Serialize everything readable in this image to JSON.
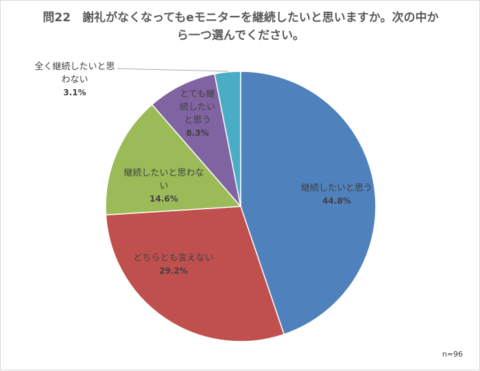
{
  "title": {
    "line1": "問22　謝礼がなくなってもeモニターを継続したいと思いますか。次の中か",
    "line2": "ら一つ選んでください。"
  },
  "note": "n=96",
  "chart_data": {
    "type": "pie",
    "title": "問22　謝礼がなくなってもeモニターを継続したいと思いますか。次の中から一つ選んでください。",
    "start_angle_deg": 0,
    "direction": "clockwise",
    "legend": "none",
    "slices": [
      {
        "label": "継続したいと思う",
        "label_lines": [
          "継続したいと思う"
        ],
        "value": 44.8,
        "value_label": "44.8%",
        "color": "#4f81bd"
      },
      {
        "label": "どちらとも言えない",
        "label_lines": [
          "どちらとも言えない"
        ],
        "value": 29.2,
        "value_label": "29.2%",
        "color": "#c0504d"
      },
      {
        "label": "継続したいと思わない",
        "label_lines": [
          "継続したいと思わな",
          "い"
        ],
        "value": 14.6,
        "value_label": "14.6%",
        "color": "#9bbb59"
      },
      {
        "label": "とても継続したいと思う",
        "label_lines": [
          "とても継",
          "続したい",
          "と思う"
        ],
        "value": 8.3,
        "value_label": "8.3%",
        "color": "#8064a2"
      },
      {
        "label": "全く継続したいと思わない",
        "label_lines": [
          "全く継続したいと思",
          "わない"
        ],
        "value": 3.1,
        "value_label": "3.1%",
        "color": "#4bacc6"
      }
    ]
  }
}
